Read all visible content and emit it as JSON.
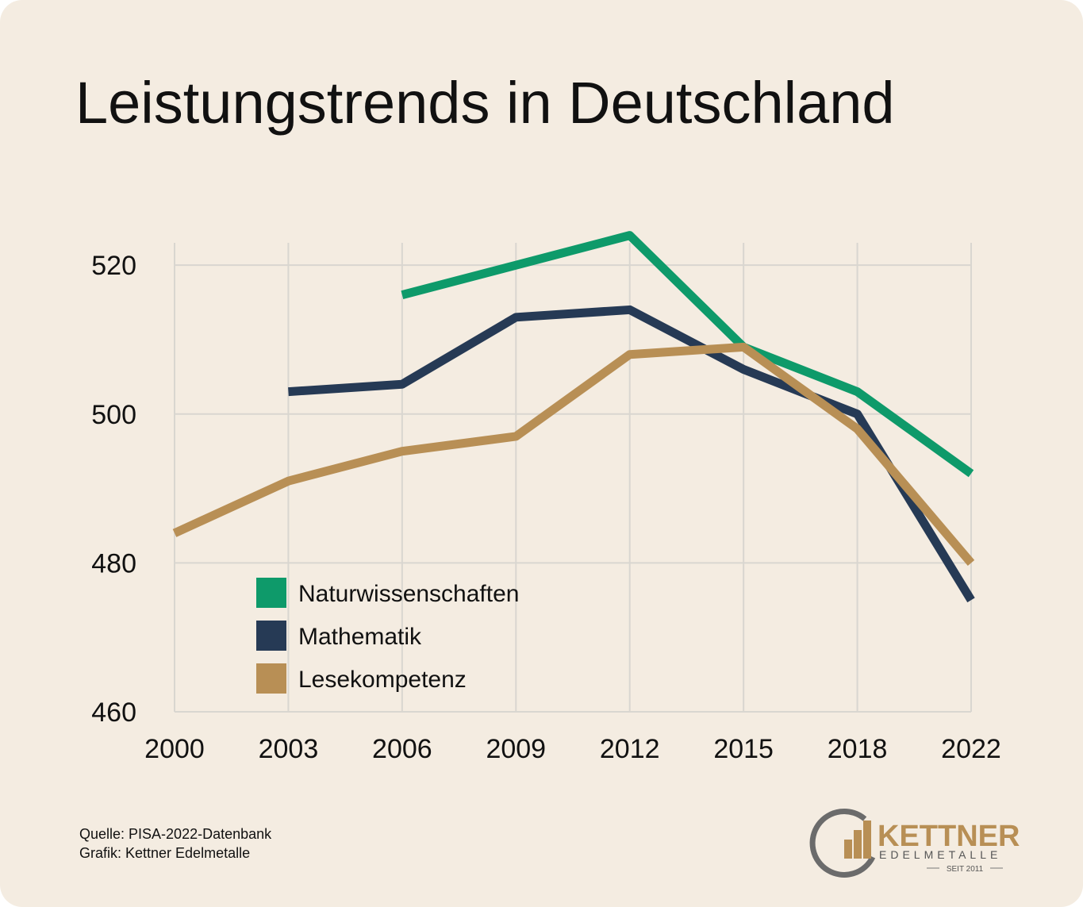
{
  "chart_data": {
    "type": "line",
    "title": "Leistungstrends in Deutschland",
    "categories": [
      "2000",
      "2003",
      "2006",
      "2009",
      "2012",
      "2015",
      "2018",
      "2022"
    ],
    "series": [
      {
        "name": "Naturwissenschaften",
        "color": "#0e9a6a",
        "values": [
          null,
          null,
          516,
          520,
          524,
          509,
          503,
          492
        ]
      },
      {
        "name": "Mathematik",
        "color": "#263a55",
        "values": [
          null,
          503,
          504,
          513,
          514,
          506,
          500,
          475
        ]
      },
      {
        "name": "Lesekompetenz",
        "color": "#b88f55",
        "values": [
          484,
          491,
          495,
          497,
          508,
          509,
          498,
          480
        ]
      }
    ],
    "ylim": [
      460,
      523
    ],
    "yticks": [
      460,
      480,
      500,
      520
    ],
    "grid": true,
    "legend": "bottom-left"
  },
  "footer": {
    "source": "Quelle: PISA-2022-Datenbank",
    "credit": "Grafik: Kettner Edelmetalle"
  },
  "logo": {
    "name": "KETTNER",
    "subtitle": "EDELMETALLE",
    "since": "SEIT 2011"
  }
}
